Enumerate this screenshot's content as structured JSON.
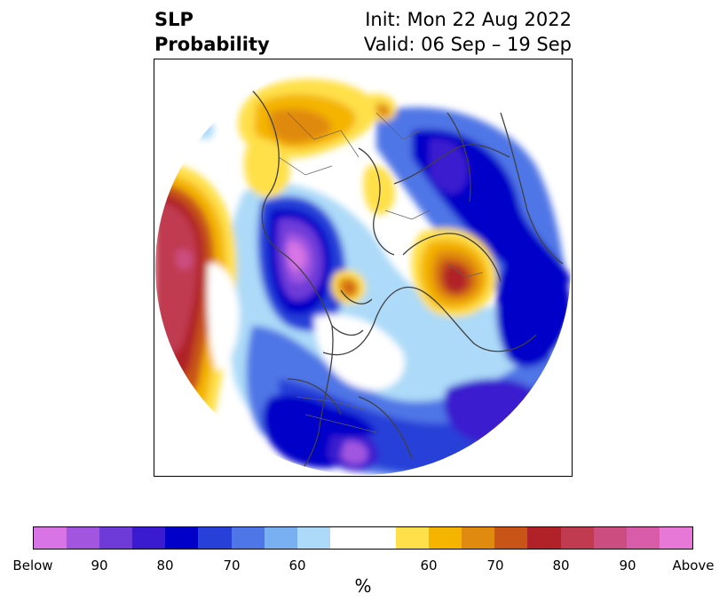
{
  "title": {
    "left_line1": "SLP",
    "left_line2": "Probability",
    "right_line1": "Init: Mon 22 Aug 2022",
    "right_line2": "Valid: 06 Sep – 19 Sep"
  },
  "colorbar": {
    "unit": "%",
    "segments": [
      "#d874e6",
      "#a256e0",
      "#6e3bd8",
      "#3a1bcf",
      "#0000c8",
      "#2640d8",
      "#4f76e6",
      "#78b0f2",
      "#acdaf8",
      "#ffffff",
      "#ffe04a",
      "#f4b400",
      "#e08a10",
      "#c85418",
      "#b02228",
      "#c03a50",
      "#cc4e80",
      "#d85ca8",
      "#e878d8"
    ],
    "labels": [
      "Below",
      "90",
      "80",
      "70",
      "60",
      "60",
      "70",
      "80",
      "90",
      "Above"
    ]
  }
}
